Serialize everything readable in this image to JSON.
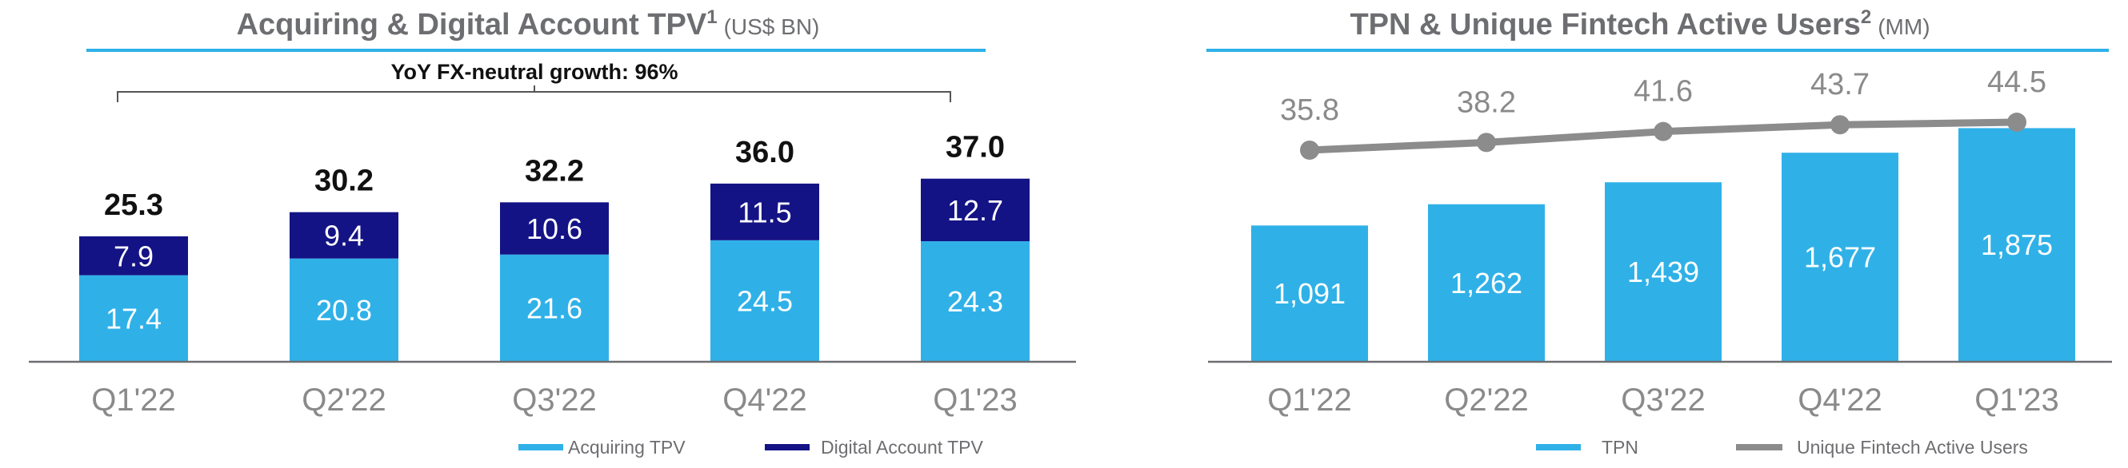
{
  "colors": {
    "acquiring": "#2fb1e8",
    "digital": "#141385",
    "tpn": "#2fb1e8",
    "line": "#8c8c8c",
    "title_rule": "#2fb1e8"
  },
  "chart_data": [
    {
      "type": "bar",
      "stacked": true,
      "title": "Acquiring & Digital Account TPV",
      "title_superscript": "1",
      "title_unit": "(US$ BN)",
      "annotation": "YoY FX-neutral growth: 96%",
      "categories": [
        "Q1'22",
        "Q2'22",
        "Q3'22",
        "Q4'22",
        "Q1'23"
      ],
      "series": [
        {
          "name": "Acquiring TPV",
          "values": [
            17.4,
            20.8,
            21.6,
            24.5,
            24.3
          ]
        },
        {
          "name": "Digital Account TPV",
          "values": [
            7.9,
            9.4,
            10.6,
            11.5,
            12.7
          ]
        }
      ],
      "totals": [
        25.3,
        30.2,
        32.2,
        36.0,
        37.0
      ],
      "totals_labels": [
        "25.3",
        "30.2",
        "32.2",
        "36.0",
        "37.0"
      ],
      "ylim": [
        0,
        40
      ],
      "grid": false,
      "legend": "bottom"
    },
    {
      "type": "bar",
      "combo": "bar+line",
      "title": "TPN & Unique Fintech Active Users",
      "title_superscript": "2",
      "title_unit": "(MM)",
      "categories": [
        "Q1'22",
        "Q2'22",
        "Q3'22",
        "Q4'22",
        "Q1'23"
      ],
      "series": [
        {
          "name": "TPN",
          "type": "bar",
          "values": [
            1091,
            1262,
            1439,
            1677,
            1875
          ],
          "labels": [
            "1,091",
            "1,262",
            "1,439",
            "1,677",
            "1,875"
          ]
        },
        {
          "name": "Unique Fintech Active Users",
          "type": "line",
          "values": [
            35.8,
            38.2,
            41.6,
            43.7,
            44.5
          ],
          "labels": [
            "35.8",
            "38.2",
            "41.6",
            "43.7",
            "44.5"
          ]
        }
      ],
      "grid": false,
      "legend": "bottom"
    }
  ]
}
